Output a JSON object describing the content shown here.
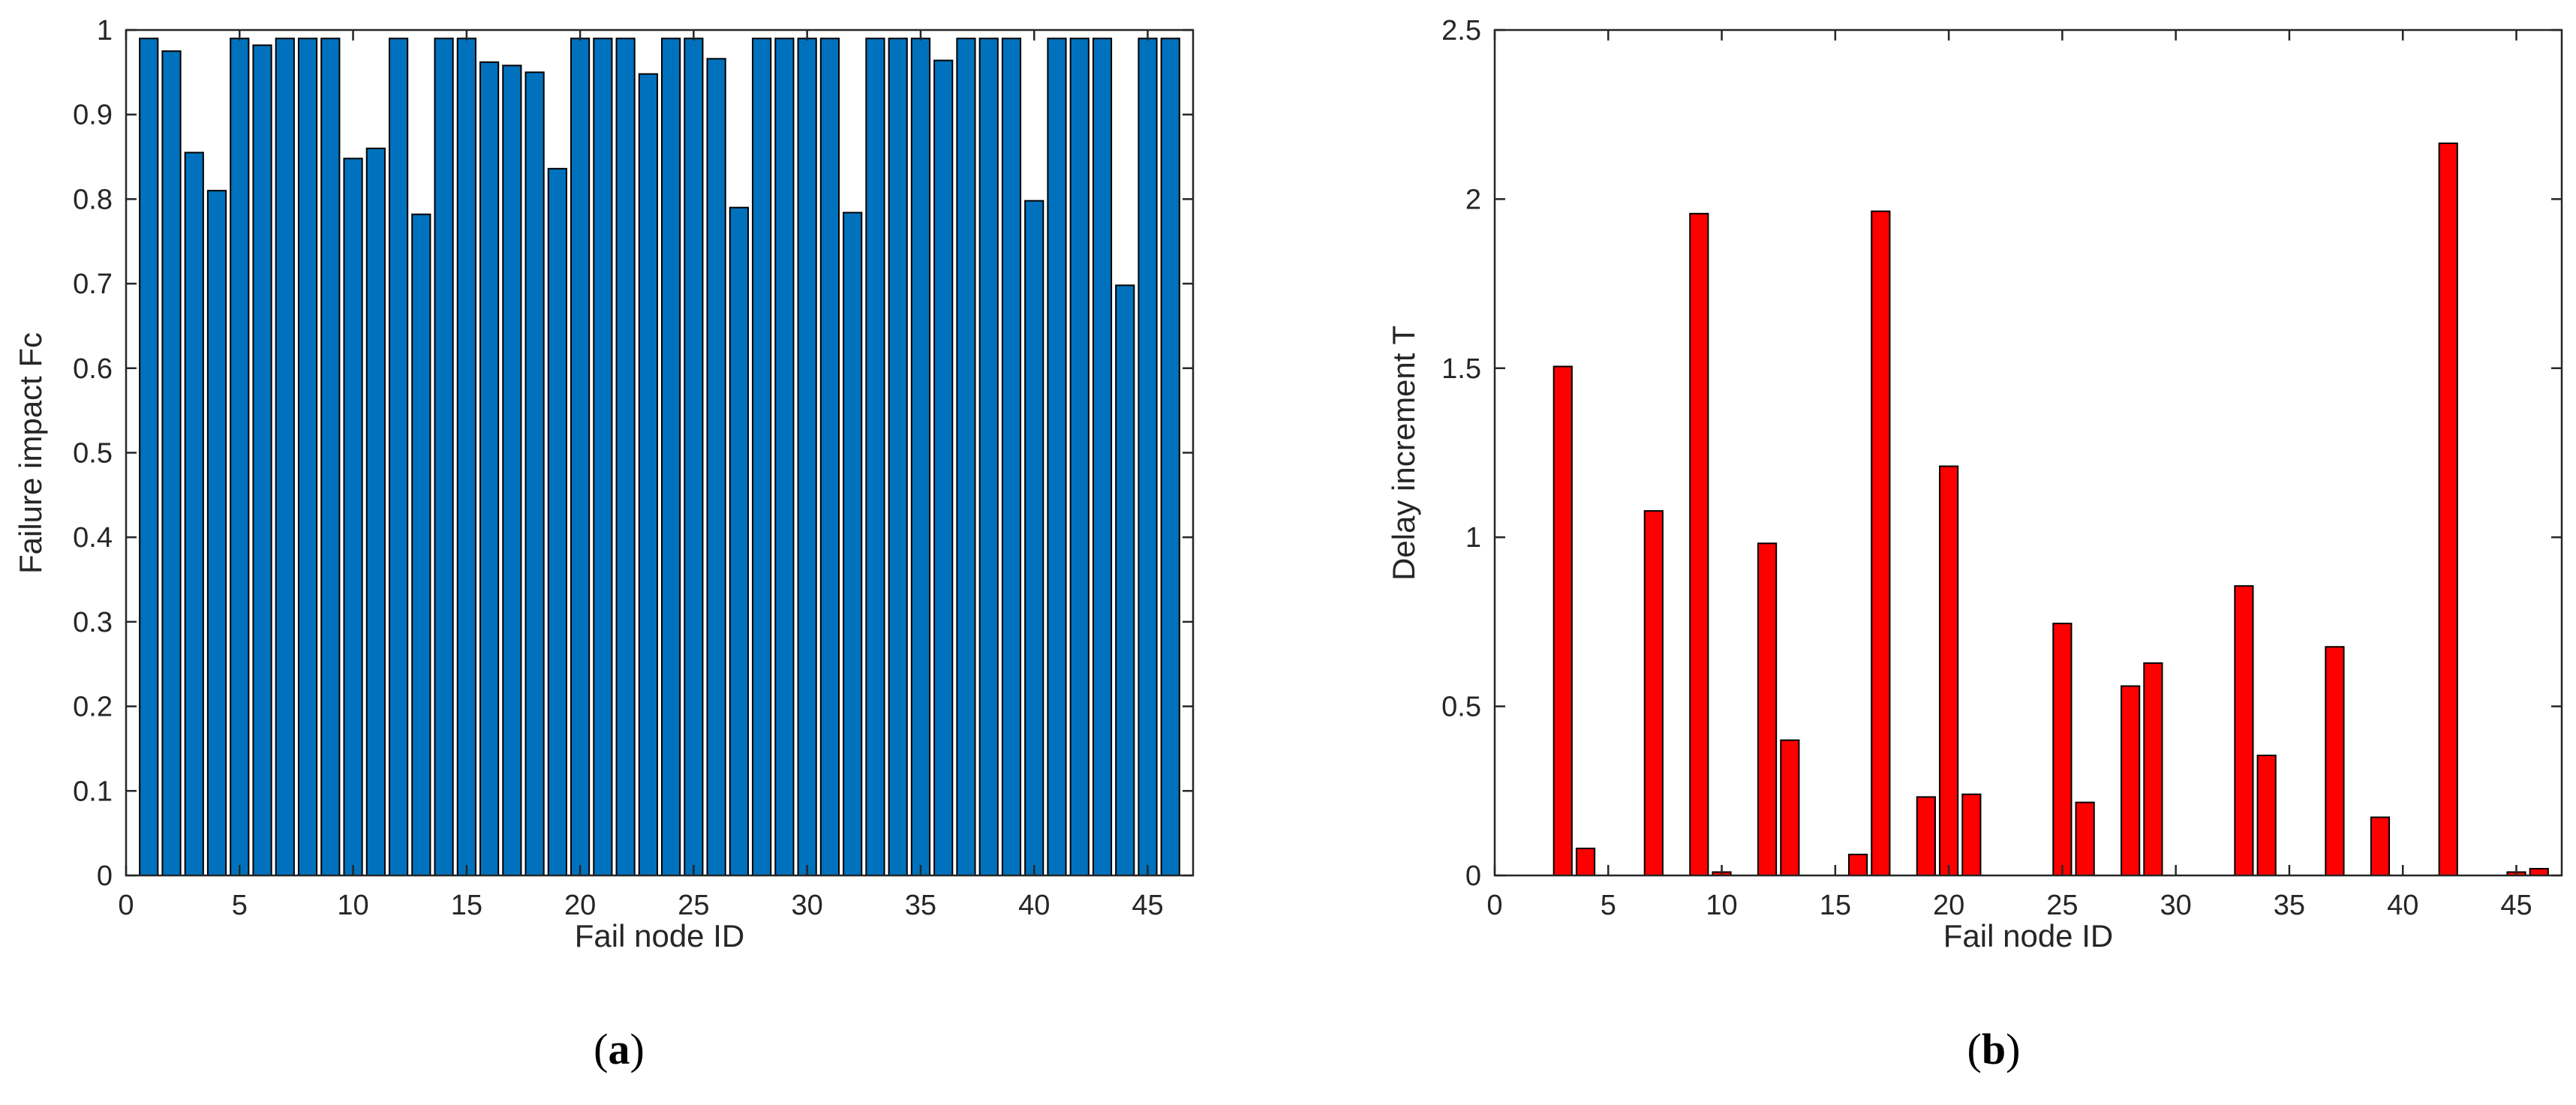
{
  "chart_data": [
    {
      "type": "bar",
      "panel_caption": "a",
      "title": "",
      "xlabel": "Fail node ID",
      "ylabel": "Failure impact Fc",
      "xlim": [
        0,
        47
      ],
      "ylim": [
        0,
        1
      ],
      "x_ticks": [
        0,
        5,
        10,
        15,
        20,
        25,
        30,
        35,
        40,
        45
      ],
      "y_ticks": [
        0,
        0.1,
        0.2,
        0.3,
        0.4,
        0.5,
        0.6,
        0.7,
        0.8,
        0.9,
        1
      ],
      "y_tick_labels": [
        "0",
        "0.1",
        "0.2",
        "0.3",
        "0.4",
        "0.5",
        "0.6",
        "0.7",
        "0.8",
        "0.9",
        "1"
      ],
      "bar_color": "#0072BD",
      "x": [
        1,
        2,
        3,
        4,
        5,
        6,
        7,
        8,
        9,
        10,
        11,
        12,
        13,
        14,
        15,
        16,
        17,
        18,
        19,
        20,
        21,
        22,
        23,
        24,
        25,
        26,
        27,
        28,
        29,
        30,
        31,
        32,
        33,
        34,
        35,
        36,
        37,
        38,
        39,
        40,
        41,
        42,
        43,
        44,
        45,
        46
      ],
      "values": [
        0.99,
        0.975,
        0.855,
        0.81,
        0.99,
        0.982,
        0.99,
        0.99,
        0.99,
        0.848,
        0.86,
        0.99,
        0.782,
        0.99,
        0.99,
        0.962,
        0.958,
        0.95,
        0.836,
        0.99,
        0.99,
        0.99,
        0.948,
        0.99,
        0.99,
        0.966,
        0.79,
        0.99,
        0.99,
        0.99,
        0.99,
        0.784,
        0.99,
        0.99,
        0.99,
        0.964,
        0.99,
        0.99,
        0.99,
        0.798,
        0.99,
        0.99,
        0.99,
        0.698,
        0.99,
        0.99
      ]
    },
    {
      "type": "bar",
      "panel_caption": "b",
      "title": "",
      "xlabel": "Fail node ID",
      "ylabel": "Delay increment T",
      "xlim": [
        0,
        47
      ],
      "ylim": [
        0,
        2.5
      ],
      "x_ticks": [
        0,
        5,
        10,
        15,
        20,
        25,
        30,
        35,
        40,
        45
      ],
      "y_ticks": [
        0,
        0.5,
        1,
        1.5,
        2,
        2.5
      ],
      "y_tick_labels": [
        "0",
        "0.5",
        "1",
        "1.5",
        "2",
        "2.5"
      ],
      "bar_color": "#FF0000",
      "x": [
        1,
        2,
        3,
        4,
        5,
        6,
        7,
        8,
        9,
        10,
        11,
        12,
        13,
        14,
        15,
        16,
        17,
        18,
        19,
        20,
        21,
        22,
        23,
        24,
        25,
        26,
        27,
        28,
        29,
        30,
        31,
        32,
        33,
        34,
        35,
        36,
        37,
        38,
        39,
        40,
        41,
        42,
        43,
        44,
        45,
        46
      ],
      "values": [
        0,
        0,
        1.505,
        0.08,
        0,
        0,
        1.078,
        0,
        1.957,
        0.01,
        0,
        0.982,
        0.4,
        0,
        0,
        0.062,
        1.964,
        0,
        0.232,
        1.21,
        0.24,
        0,
        0,
        0,
        0.745,
        0.216,
        0,
        0.56,
        0.628,
        0,
        0,
        0,
        0.856,
        0.355,
        0,
        0,
        0.676,
        0,
        0.172,
        0,
        0,
        2.165,
        0,
        0,
        0.01,
        0.02
      ]
    }
  ]
}
